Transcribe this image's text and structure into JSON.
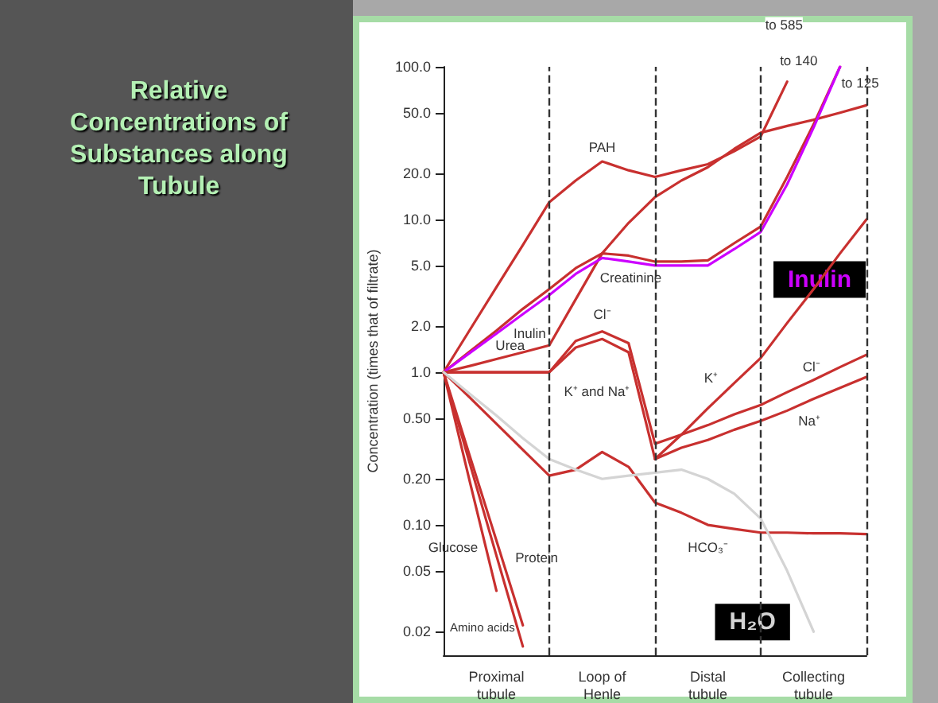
{
  "chart_data": {
    "type": "line",
    "title": "Relative Concentrations of Substances along Tubule",
    "ylabel": "Concentration (times that of filtrate)",
    "log": "y",
    "grid": "x",
    "legend": false,
    "marker": "none",
    "line_style": "solid",
    "categories": [
      null,
      null,
      "Proximal\ntubule",
      null,
      null,
      null,
      "Loop of\nHenle",
      null,
      null,
      null,
      "Distal\ntubule",
      null,
      null,
      null,
      "Collecting\ntubule",
      null,
      null
    ],
    "ylim": [
      0.014,
      100
    ],
    "yticks": [
      {
        "value": 0.02,
        "label": "0.02"
      },
      {
        "value": 0.05,
        "label": "0.05"
      },
      {
        "value": 0.1,
        "label": "0.10"
      },
      {
        "value": 0.2,
        "label": "0.20"
      },
      {
        "value": 0.5,
        "label": "0.50"
      },
      {
        "value": 1,
        "label": "1.0"
      },
      {
        "value": 2,
        "label": "2.0"
      },
      {
        "value": 5,
        "label": "5.0"
      },
      {
        "value": 10,
        "label": "10.0"
      },
      {
        "value": 20,
        "label": "20.0"
      },
      {
        "value": 50,
        "label": "50.0"
      },
      {
        "value": 100,
        "label": "100.0"
      }
    ],
    "series": [
      {
        "name": "PAH",
        "color": "#c8302f",
        "values": [
          1,
          1.9,
          3.6,
          6.8,
          13,
          18,
          24,
          21,
          19,
          21,
          23,
          28,
          35,
          80,
          null,
          null,
          null
        ]
      },
      {
        "name": "Urea",
        "color": "#c8302f",
        "values": [
          1,
          1.1,
          1.22,
          1.35,
          1.5,
          3,
          6,
          9.5,
          14,
          18,
          22,
          29,
          37,
          41,
          45,
          50,
          56
        ]
      },
      {
        "name": "Creatinine",
        "color": "#c8302f",
        "values": [
          1,
          1.37,
          1.87,
          2.6,
          3.5,
          4.8,
          6,
          5.8,
          5.3,
          5.3,
          5.4,
          7,
          9,
          19,
          42,
          100,
          null
        ]
      },
      {
        "name": "Inulin",
        "color": "#cc00ff",
        "values": [
          1,
          1.34,
          1.79,
          2.4,
          3.2,
          4.4,
          5.6,
          5.3,
          5,
          5,
          5,
          6.4,
          8.3,
          17,
          40,
          100,
          null
        ]
      },
      {
        "name": "Cl⁻",
        "color": "#c8302f",
        "values": [
          1,
          1,
          1,
          1,
          1,
          1.6,
          1.85,
          1.55,
          0.34,
          0.39,
          0.45,
          0.53,
          0.61,
          0.74,
          0.89,
          1.08,
          1.3
        ]
      },
      {
        "name": "K⁺ and Na⁺",
        "color": "#c8302f",
        "values": [
          1,
          1,
          1,
          1,
          1,
          1.45,
          1.65,
          1.35,
          0.27,
          null,
          null,
          null,
          null,
          null,
          null,
          null,
          null
        ]
      },
      {
        "name": "K⁺",
        "color": "#c8302f",
        "values": [
          null,
          null,
          null,
          null,
          null,
          null,
          null,
          null,
          0.27,
          0.39,
          0.58,
          0.85,
          1.24,
          2.1,
          3.5,
          6,
          10
        ]
      },
      {
        "name": "Na⁺",
        "color": "#c8302f",
        "values": [
          null,
          null,
          null,
          null,
          null,
          null,
          null,
          null,
          0.27,
          0.32,
          0.36,
          0.42,
          0.48,
          0.56,
          0.67,
          0.79,
          0.93
        ]
      },
      {
        "name": "HCO₃⁻",
        "color": "#c8302f",
        "values": [
          1,
          0.68,
          0.46,
          0.31,
          0.21,
          0.23,
          0.3,
          0.24,
          0.14,
          0.12,
          0.1,
          0.094,
          0.089,
          0.089,
          0.088,
          0.088,
          0.087
        ]
      },
      {
        "name": "Glucose",
        "color": "#c8302f",
        "values": [
          1,
          0.19,
          0.037,
          null,
          null,
          null,
          null,
          null,
          null,
          null,
          null,
          null,
          null,
          null,
          null,
          null,
          null
        ]
      },
      {
        "name": "Amino acids",
        "color": "#c8302f",
        "values": [
          1,
          0.25,
          0.063,
          0.016,
          null,
          null,
          null,
          null,
          null,
          null,
          null,
          null,
          null,
          null,
          null,
          null,
          null
        ]
      },
      {
        "name": "Protein",
        "color": "#c8302f",
        "values": [
          1,
          0.28,
          0.079,
          0.022,
          null,
          null,
          null,
          null,
          null,
          null,
          null,
          null,
          null,
          null,
          null,
          null,
          null
        ]
      },
      {
        "name": "H₂O",
        "color": "#d4d4d4",
        "values": [
          1,
          0.72,
          0.52,
          0.37,
          0.27,
          0.23,
          0.2,
          0.21,
          0.22,
          0.23,
          0.2,
          0.16,
          0.11,
          0.05,
          0.02,
          null,
          null
        ]
      }
    ],
    "annotations": [
      "to 585",
      "to 140",
      "to 125"
    ]
  }
}
